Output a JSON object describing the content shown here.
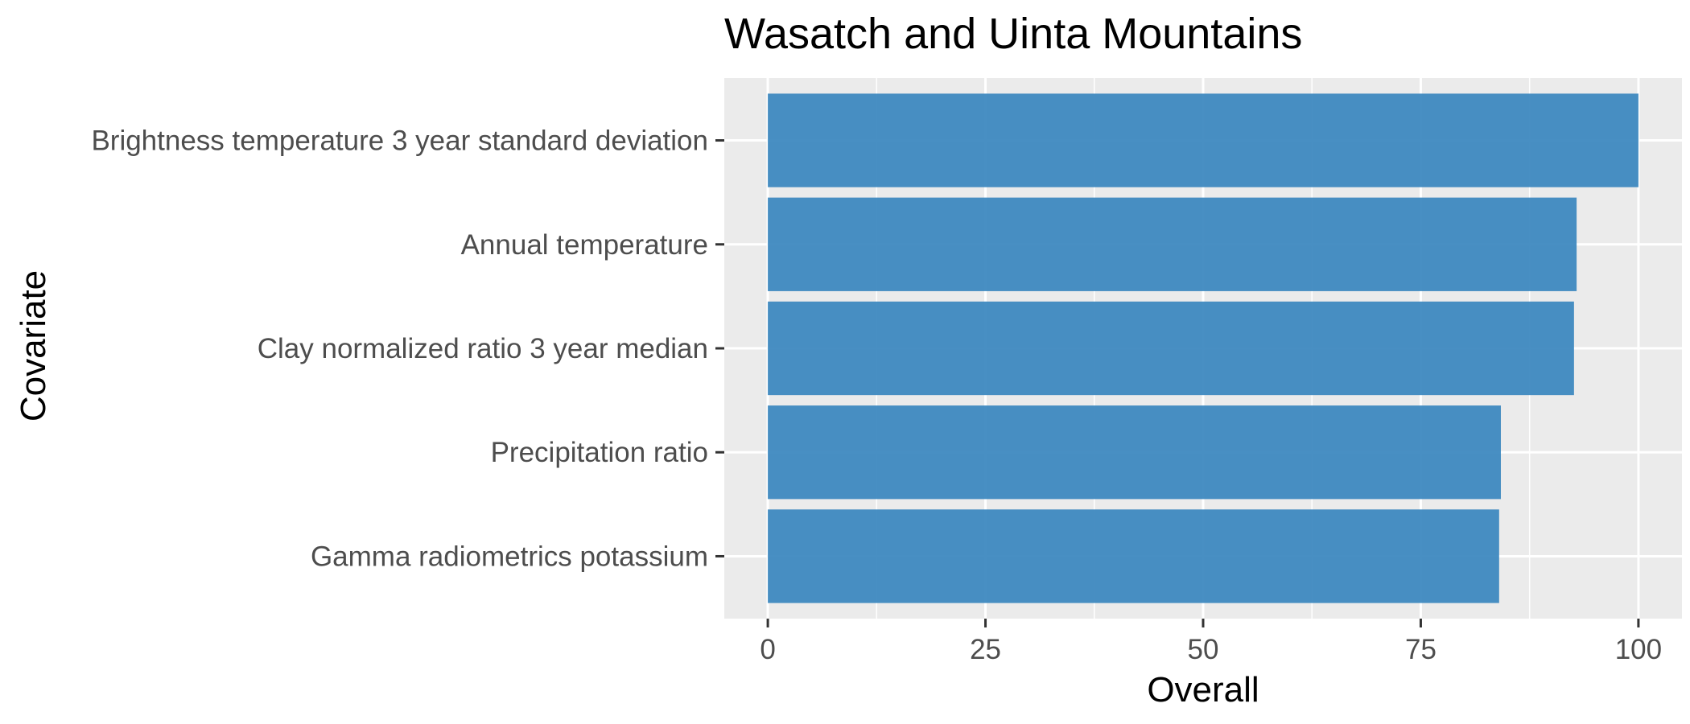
{
  "chart_data": {
    "type": "bar",
    "orientation": "horizontal",
    "title": "Wasatch and Uinta Mountains",
    "xlabel": "Overall",
    "ylabel": "Covariate",
    "categories": [
      "Brightness temperature 3 year standard deviation",
      "Annual temperature",
      "Clay normalized ratio 3 year median",
      "Precipitation ratio",
      "Gamma radiometrics potassium"
    ],
    "values": [
      100,
      92.9,
      92.6,
      84.2,
      84.0
    ],
    "xlim": [
      -5,
      105
    ],
    "xticks": [
      0,
      25,
      50,
      75,
      100
    ],
    "grid": true,
    "bar_color": "#3a86be",
    "panel_background": "#ebebeb",
    "grid_color": "#ffffff"
  }
}
